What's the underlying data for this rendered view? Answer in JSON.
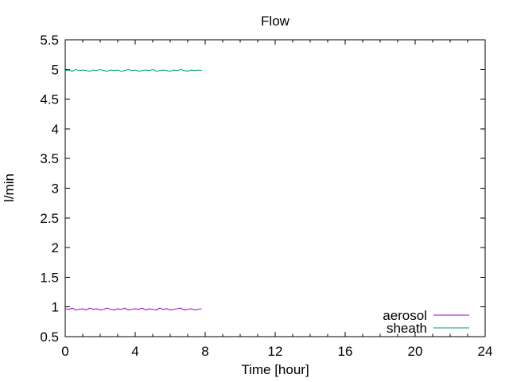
{
  "chart_data": {
    "type": "line",
    "title": "Flow",
    "xlabel": "Time [hour]",
    "ylabel": "l/min",
    "xlim": [
      0,
      24
    ],
    "ylim": [
      0.5,
      5.5
    ],
    "xticks": [
      0,
      4,
      8,
      12,
      16,
      20,
      24
    ],
    "x_minor_step": 1,
    "yticks": [
      0.5,
      1,
      1.5,
      2,
      2.5,
      3,
      3.5,
      4,
      4.5,
      5,
      5.5
    ],
    "grid": false,
    "legend_position": "bottom-right-inside",
    "axis_color": "#000000",
    "x": [
      0,
      0.2,
      0.4,
      0.6,
      0.8,
      1.0,
      1.2,
      1.4,
      1.6,
      1.8,
      2.0,
      2.2,
      2.4,
      2.6,
      2.8,
      3.0,
      3.2,
      3.4,
      3.6,
      3.8,
      4.0,
      4.2,
      4.4,
      4.6,
      4.8,
      5.0,
      5.2,
      5.4,
      5.6,
      5.8,
      6.0,
      6.2,
      6.4,
      6.6,
      6.8,
      7.0,
      7.2,
      7.4,
      7.6,
      7.8
    ],
    "series": [
      {
        "name": "aerosol",
        "color": "#9400d3",
        "values": [
          0.97,
          0.96,
          0.98,
          0.95,
          0.96,
          0.97,
          0.95,
          0.98,
          0.96,
          0.97,
          0.95,
          0.96,
          0.98,
          0.96,
          0.95,
          0.97,
          0.96,
          0.98,
          0.95,
          0.96,
          0.97,
          0.96,
          0.98,
          0.95,
          0.97,
          0.96,
          0.95,
          0.98,
          0.96,
          0.97,
          0.95,
          0.96,
          0.97,
          0.98,
          0.95,
          0.96,
          0.97,
          0.95,
          0.96,
          0.97
        ]
      },
      {
        "name": "sheath",
        "color": "#009e73",
        "values": [
          4.98,
          4.99,
          4.97,
          5.0,
          4.98,
          4.99,
          4.98,
          4.97,
          4.99,
          4.98,
          5.0,
          4.98,
          4.97,
          4.99,
          4.98,
          4.99,
          4.97,
          4.98,
          5.0,
          4.98,
          4.99,
          4.97,
          4.98,
          4.99,
          4.98,
          5.0,
          4.97,
          4.98,
          4.99,
          4.98,
          4.97,
          4.99,
          4.98,
          5.0,
          4.98,
          4.97,
          4.99,
          4.98,
          4.99,
          4.98
        ]
      }
    ]
  }
}
